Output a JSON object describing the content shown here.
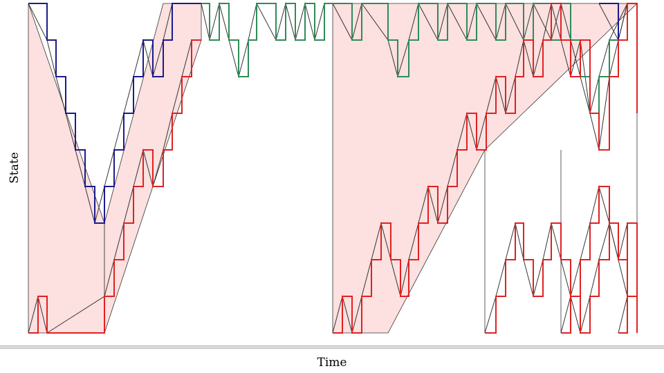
{
  "chart_data": {
    "type": "line",
    "title": "",
    "xlabel": "Time",
    "ylabel": "State",
    "xlim": [
      0,
      880
    ],
    "ylim": [
      0,
      9
    ],
    "grid": false,
    "legend": "none",
    "colors": {
      "upper": "#1a1a8c",
      "settled": "#2e8b57",
      "lower": "#e02020",
      "diagonal": "#333333",
      "band_fill": "#fde0e0",
      "axis_line": "#888888"
    },
    "bands": [
      {
        "x_start": 0,
        "x_end": 110,
        "top": [
          [
            0,
            9
          ],
          [
            110,
            3
          ]
        ],
        "bottom": [
          [
            0,
            0
          ],
          [
            110,
            0
          ]
        ]
      },
      {
        "x_start": 110,
        "x_end": 250,
        "top": [
          [
            110,
            3
          ],
          [
            195,
            9
          ],
          [
            250,
            9
          ]
        ],
        "bottom": [
          [
            110,
            0
          ],
          [
            250,
            8
          ]
        ]
      },
      {
        "x_start": 440,
        "x_end": 880,
        "top": [
          [
            440,
            9
          ],
          [
            880,
            9
          ]
        ],
        "bottom": [
          [
            440,
            0
          ],
          [
            520,
            0
          ],
          [
            660,
            5
          ],
          [
            880,
            9
          ]
        ]
      }
    ],
    "band_dividers": [
      {
        "x": 660,
        "from": 0,
        "to": 5
      },
      {
        "x": 770,
        "from": 0,
        "to": 5
      },
      {
        "x": 880,
        "from": 0,
        "to": 9
      }
    ],
    "series": [
      {
        "role": "upper",
        "points": [
          [
            0,
            9
          ],
          [
            27,
            9
          ],
          [
            27,
            8
          ],
          [
            40,
            8
          ],
          [
            40,
            7
          ],
          [
            54,
            7
          ],
          [
            54,
            6
          ],
          [
            68,
            6
          ],
          [
            68,
            5
          ],
          [
            82,
            5
          ],
          [
            82,
            4
          ],
          [
            96,
            4
          ],
          [
            96,
            3
          ],
          [
            110,
            3
          ],
          [
            110,
            4
          ],
          [
            124,
            4
          ],
          [
            124,
            5
          ],
          [
            138,
            5
          ],
          [
            138,
            6
          ],
          [
            152,
            6
          ],
          [
            152,
            7
          ],
          [
            166,
            7
          ],
          [
            166,
            8
          ],
          [
            180,
            8
          ],
          [
            180,
            7
          ],
          [
            195,
            7
          ],
          [
            195,
            8
          ],
          [
            208,
            8
          ],
          [
            208,
            9
          ],
          [
            250,
            9
          ]
        ]
      },
      {
        "role": "upper",
        "points": [
          [
            825,
            9
          ],
          [
            853,
            9
          ],
          [
            853,
            8
          ],
          [
            866,
            8
          ],
          [
            866,
            9
          ],
          [
            880,
            9
          ],
          [
            880,
            8
          ]
        ]
      },
      {
        "role": "settled",
        "points": [
          [
            250,
            9
          ],
          [
            262,
            9
          ],
          [
            262,
            8
          ],
          [
            276,
            8
          ],
          [
            276,
            9
          ],
          [
            290,
            9
          ],
          [
            290,
            8
          ],
          [
            304,
            8
          ],
          [
            304,
            7
          ],
          [
            318,
            7
          ],
          [
            318,
            8
          ],
          [
            330,
            8
          ],
          [
            330,
            9
          ],
          [
            358,
            9
          ],
          [
            358,
            8
          ],
          [
            372,
            8
          ],
          [
            372,
            9
          ],
          [
            386,
            9
          ],
          [
            386,
            8
          ],
          [
            400,
            8
          ],
          [
            400,
            9
          ],
          [
            414,
            9
          ],
          [
            414,
            8
          ],
          [
            428,
            8
          ],
          [
            428,
            9
          ],
          [
            440,
            9
          ]
        ]
      },
      {
        "role": "settled",
        "points": [
          [
            440,
            9
          ],
          [
            468,
            9
          ],
          [
            468,
            8
          ],
          [
            482,
            8
          ],
          [
            482,
            9
          ],
          [
            520,
            9
          ],
          [
            520,
            8
          ],
          [
            534,
            8
          ],
          [
            534,
            7
          ],
          [
            550,
            7
          ],
          [
            550,
            8
          ],
          [
            564,
            8
          ],
          [
            564,
            9
          ],
          [
            592,
            9
          ],
          [
            592,
            8
          ],
          [
            606,
            8
          ],
          [
            606,
            9
          ],
          [
            634,
            9
          ],
          [
            634,
            8
          ],
          [
            648,
            8
          ],
          [
            648,
            9
          ],
          [
            676,
            9
          ],
          [
            676,
            8
          ],
          [
            690,
            8
          ],
          [
            690,
            9
          ],
          [
            716,
            9
          ],
          [
            716,
            8
          ],
          [
            730,
            8
          ],
          [
            730,
            9
          ],
          [
            756,
            9
          ],
          [
            756,
            8
          ],
          [
            770,
            8
          ],
          [
            770,
            9
          ],
          [
            784,
            9
          ],
          [
            784,
            8
          ],
          [
            798,
            8
          ],
          [
            798,
            7
          ],
          [
            812,
            7
          ],
          [
            812,
            6
          ],
          [
            825,
            6
          ],
          [
            825,
            7
          ],
          [
            840,
            7
          ],
          [
            840,
            8
          ],
          [
            866,
            8
          ],
          [
            866,
            9
          ],
          [
            880,
            9
          ],
          [
            880,
            7
          ]
        ]
      },
      {
        "role": "lower",
        "points": [
          [
            0,
            0
          ],
          [
            14,
            0
          ],
          [
            14,
            1
          ],
          [
            27,
            1
          ],
          [
            27,
            0
          ],
          [
            110,
            0
          ],
          [
            110,
            1
          ],
          [
            124,
            1
          ],
          [
            124,
            2
          ],
          [
            138,
            2
          ],
          [
            138,
            3
          ],
          [
            152,
            3
          ],
          [
            152,
            4
          ],
          [
            166,
            4
          ],
          [
            166,
            5
          ],
          [
            180,
            5
          ],
          [
            180,
            4
          ],
          [
            195,
            4
          ],
          [
            195,
            5
          ],
          [
            208,
            5
          ],
          [
            208,
            6
          ],
          [
            222,
            6
          ],
          [
            222,
            7
          ],
          [
            236,
            7
          ],
          [
            236,
            8
          ],
          [
            250,
            8
          ]
        ]
      },
      {
        "role": "lower",
        "points": [
          [
            440,
            0
          ],
          [
            454,
            0
          ],
          [
            454,
            1
          ],
          [
            468,
            1
          ],
          [
            468,
            0
          ],
          [
            482,
            0
          ],
          [
            482,
            1
          ],
          [
            496,
            1
          ],
          [
            496,
            2
          ],
          [
            510,
            2
          ],
          [
            510,
            3
          ],
          [
            524,
            3
          ],
          [
            524,
            2
          ],
          [
            538,
            2
          ],
          [
            538,
            1
          ],
          [
            550,
            1
          ],
          [
            550,
            2
          ],
          [
            564,
            2
          ],
          [
            564,
            3
          ],
          [
            578,
            3
          ],
          [
            578,
            4
          ],
          [
            592,
            4
          ],
          [
            592,
            3
          ],
          [
            606,
            3
          ],
          [
            606,
            4
          ],
          [
            620,
            4
          ],
          [
            620,
            5
          ],
          [
            634,
            5
          ],
          [
            634,
            6
          ],
          [
            648,
            6
          ],
          [
            648,
            5
          ],
          [
            662,
            5
          ],
          [
            662,
            6
          ],
          [
            676,
            6
          ],
          [
            676,
            7
          ],
          [
            690,
            7
          ],
          [
            690,
            6
          ],
          [
            704,
            6
          ],
          [
            704,
            7
          ],
          [
            716,
            7
          ],
          [
            716,
            8
          ],
          [
            730,
            8
          ],
          [
            730,
            7
          ],
          [
            744,
            7
          ],
          [
            744,
            8
          ],
          [
            756,
            8
          ],
          [
            756,
            9
          ],
          [
            770,
            9
          ],
          [
            770,
            8
          ],
          [
            784,
            8
          ],
          [
            784,
            7
          ],
          [
            798,
            7
          ],
          [
            798,
            8
          ],
          [
            812,
            8
          ],
          [
            812,
            6
          ],
          [
            825,
            6
          ],
          [
            825,
            5
          ],
          [
            840,
            5
          ],
          [
            840,
            7
          ],
          [
            853,
            7
          ],
          [
            853,
            8
          ],
          [
            866,
            8
          ],
          [
            866,
            9
          ],
          [
            880,
            9
          ],
          [
            880,
            6
          ]
        ]
      },
      {
        "role": "lower",
        "points": [
          [
            660,
            0
          ],
          [
            676,
            0
          ],
          [
            676,
            1
          ],
          [
            690,
            1
          ],
          [
            690,
            2
          ],
          [
            704,
            2
          ],
          [
            704,
            3
          ],
          [
            716,
            3
          ],
          [
            716,
            2
          ],
          [
            730,
            2
          ],
          [
            730,
            1
          ],
          [
            744,
            1
          ],
          [
            744,
            2
          ],
          [
            756,
            2
          ],
          [
            756,
            3
          ],
          [
            770,
            3
          ],
          [
            770,
            2
          ],
          [
            784,
            2
          ],
          [
            784,
            1
          ],
          [
            798,
            1
          ],
          [
            798,
            0
          ],
          [
            812,
            0
          ],
          [
            812,
            1
          ],
          [
            825,
            1
          ],
          [
            825,
            2
          ],
          [
            840,
            2
          ],
          [
            840,
            3
          ],
          [
            853,
            3
          ],
          [
            853,
            2
          ],
          [
            866,
            2
          ],
          [
            866,
            1
          ],
          [
            880,
            1
          ]
        ]
      },
      {
        "role": "lower",
        "points": [
          [
            770,
            0
          ],
          [
            784,
            0
          ],
          [
            784,
            1
          ],
          [
            798,
            1
          ],
          [
            798,
            2
          ],
          [
            812,
            2
          ],
          [
            812,
            3
          ],
          [
            825,
            3
          ],
          [
            825,
            4
          ],
          [
            840,
            4
          ],
          [
            840,
            3
          ],
          [
            853,
            3
          ],
          [
            853,
            2
          ],
          [
            866,
            2
          ],
          [
            866,
            3
          ],
          [
            880,
            3
          ],
          [
            880,
            0
          ]
        ]
      },
      {
        "role": "lower",
        "points": [
          [
            853,
            0
          ],
          [
            866,
            0
          ],
          [
            866,
            1
          ],
          [
            880,
            1
          ],
          [
            880,
            2
          ]
        ]
      }
    ]
  }
}
